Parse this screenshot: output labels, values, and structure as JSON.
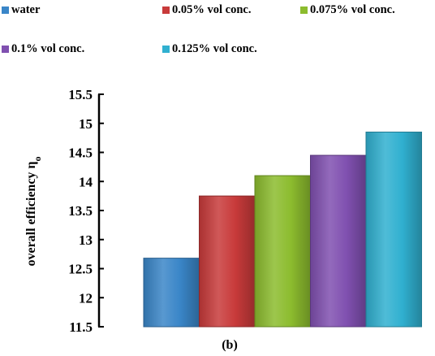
{
  "chart_data": {
    "type": "bar",
    "categories": [
      "water",
      "0.05% vol conc.",
      "0.075% vol conc.",
      "0.1% vol conc.",
      "0.125% vol conc."
    ],
    "values": [
      12.68,
      13.75,
      14.1,
      14.45,
      14.85
    ],
    "colors": [
      "#3a86c8",
      "#c83a3a",
      "#8cbc2e",
      "#8050b0",
      "#30b0d0"
    ],
    "ylabel": "overall efficiency η",
    "ylabel_subscript": "o",
    "ylim": [
      11.5,
      15.5
    ],
    "yticks": [
      "11.5",
      "12",
      "12.5",
      "13",
      "13.5",
      "14",
      "14.5",
      "15",
      "15.5"
    ],
    "grid": false,
    "legend": "top",
    "xlabel": "(b)"
  }
}
